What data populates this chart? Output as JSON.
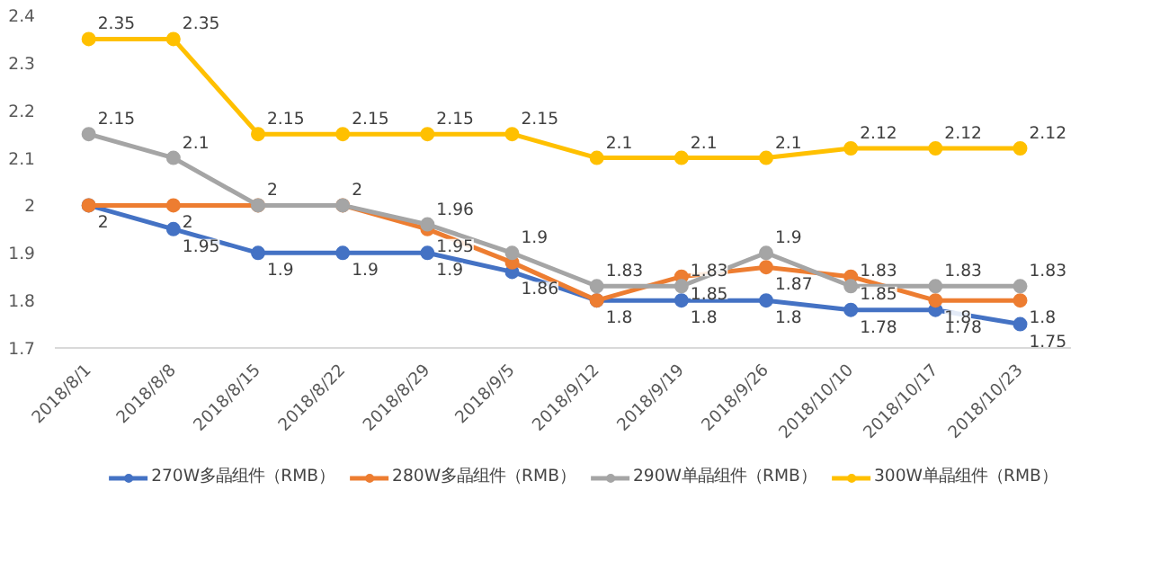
{
  "chart_data": {
    "type": "line",
    "categories": [
      "2018/8/1",
      "2018/8/8",
      "2018/8/15",
      "2018/8/22",
      "2018/8/29",
      "2018/9/5",
      "2018/9/12",
      "2018/9/19",
      "2018/9/26",
      "2018/10/10",
      "2018/10/17",
      "2018/10/23"
    ],
    "series": [
      {
        "name": "270W多晶组件（RMB）",
        "color": "#4472c4",
        "values": [
          2,
          1.95,
          1.9,
          1.9,
          1.9,
          1.86,
          1.8,
          1.8,
          1.8,
          1.78,
          1.78,
          1.75
        ],
        "value_labels": [
          null,
          "1.95",
          "1.9",
          "1.9",
          "1.9",
          "1.86",
          "1.8",
          "1.8",
          "1.8",
          "1.78",
          "1.78",
          "1.75"
        ]
      },
      {
        "name": "280W多晶组件（RMB）",
        "color": "#ed7d31",
        "values": [
          2,
          2,
          2,
          2,
          1.95,
          1.88,
          1.8,
          1.85,
          1.87,
          1.85,
          1.8,
          1.8
        ],
        "value_labels": [
          "2",
          "2",
          null,
          null,
          "1.95",
          null,
          null,
          "1.85",
          "1.87",
          "1.85",
          "1.8",
          "1.8"
        ]
      },
      {
        "name": "290W单晶组件（RMB）",
        "color": "#a5a5a5",
        "values": [
          2.15,
          2.1,
          2,
          2,
          1.96,
          1.9,
          1.83,
          1.83,
          1.9,
          1.83,
          1.83,
          1.83
        ],
        "value_labels": [
          "2.15",
          "2.1",
          "2",
          "2",
          "1.96",
          "1.9",
          "1.83",
          "1.83",
          "1.9",
          "1.83",
          "1.83",
          "1.83"
        ]
      },
      {
        "name": "300W单晶组件（RMB）",
        "color": "#ffc000",
        "values": [
          2.35,
          2.35,
          2.15,
          2.15,
          2.15,
          2.15,
          2.1,
          2.1,
          2.1,
          2.12,
          2.12,
          2.12
        ],
        "value_labels": [
          "2.35",
          "2.35",
          "2.15",
          "2.15",
          "2.15",
          "2.15",
          "2.1",
          "2.1",
          "2.1",
          "2.12",
          "2.12",
          "2.12"
        ]
      }
    ],
    "ylim": [
      1.7,
      2.4
    ],
    "yticks": [
      1.7,
      1.8,
      1.9,
      2,
      2.1,
      2.2,
      2.3,
      2.4
    ],
    "grid": false,
    "legend": "bottom",
    "marker": "circle",
    "line_style": "solid"
  }
}
